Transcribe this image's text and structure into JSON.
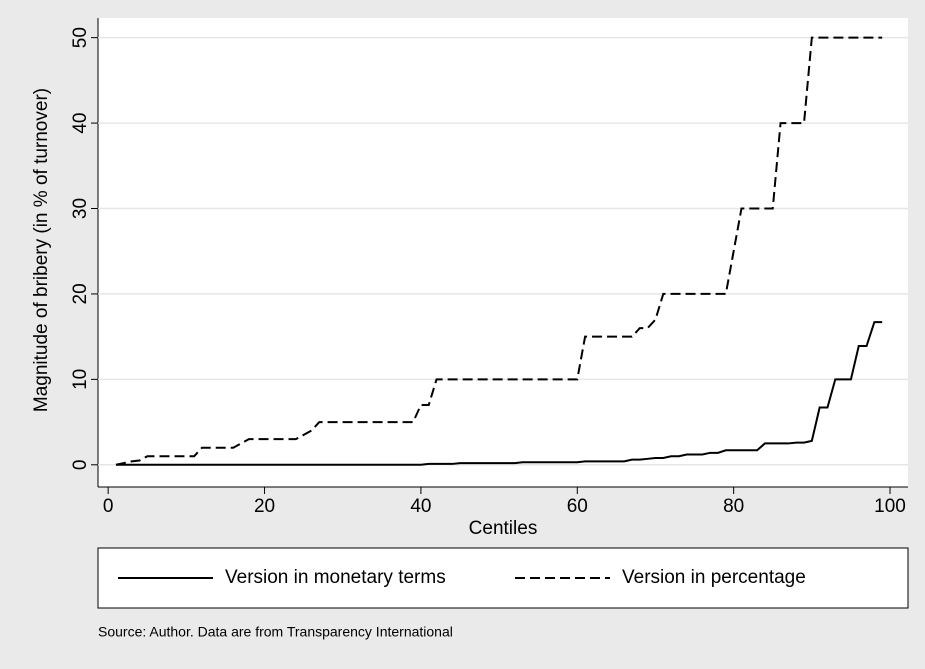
{
  "chart_data": {
    "type": "line",
    "x_label": "Centiles",
    "y_label": "Magnitude of bribery (in % of turnover)",
    "source": "Source: Author. Data are from Transparency International",
    "x": [
      1,
      2,
      3,
      4,
      5,
      6,
      7,
      8,
      9,
      10,
      11,
      12,
      13,
      14,
      15,
      16,
      17,
      18,
      19,
      20,
      21,
      22,
      23,
      24,
      25,
      26,
      27,
      28,
      29,
      30,
      31,
      32,
      33,
      34,
      35,
      36,
      37,
      38,
      39,
      40,
      41,
      42,
      43,
      44,
      45,
      46,
      47,
      48,
      49,
      50,
      51,
      52,
      53,
      54,
      55,
      56,
      57,
      58,
      59,
      60,
      61,
      62,
      63,
      64,
      65,
      66,
      67,
      68,
      69,
      70,
      71,
      72,
      73,
      74,
      75,
      76,
      77,
      78,
      79,
      80,
      81,
      82,
      83,
      84,
      85,
      86,
      87,
      88,
      89,
      90,
      91,
      92,
      93,
      94,
      95,
      96,
      97,
      98,
      99
    ],
    "series": [
      {
        "name": "Version in monetary terms",
        "color": "#000000",
        "style": "solid",
        "values": [
          0,
          0,
          0,
          0,
          0,
          0,
          0,
          0,
          0,
          0,
          0,
          0,
          0,
          0,
          0,
          0,
          0,
          0,
          0,
          0,
          0,
          0,
          0,
          0,
          0,
          0,
          0,
          0,
          0,
          0,
          0,
          0,
          0,
          0,
          0,
          0,
          0,
          0,
          0,
          0,
          0.1,
          0.1,
          0.1,
          0.1,
          0.2,
          0.2,
          0.2,
          0.2,
          0.2,
          0.2,
          0.2,
          0.2,
          0.3,
          0.3,
          0.3,
          0.3,
          0.3,
          0.3,
          0.3,
          0.3,
          0.4,
          0.4,
          0.4,
          0.4,
          0.4,
          0.4,
          0.6,
          0.6,
          0.7,
          0.8,
          0.8,
          1,
          1,
          1.2,
          1.2,
          1.2,
          1.4,
          1.4,
          1.7,
          1.7,
          1.7,
          1.7,
          1.7,
          2.5,
          2.5,
          2.5,
          2.5,
          2.6,
          2.6,
          2.8,
          6.7,
          6.7,
          10,
          10,
          10,
          13.9,
          13.9,
          16.7,
          16.7
        ]
      },
      {
        "name": "Version in percentage",
        "color": "#000000",
        "style": "dashed",
        "values": [
          0,
          0.2,
          0.4,
          0.5,
          1,
          1,
          1,
          1,
          1,
          1,
          1,
          2,
          2,
          2,
          2,
          2,
          2.5,
          3,
          3,
          3,
          3,
          3,
          3,
          3,
          3.5,
          4,
          5,
          5,
          5,
          5,
          5,
          5,
          5,
          5,
          5,
          5,
          5,
          5,
          5,
          7,
          7,
          10,
          10,
          10,
          10,
          10,
          10,
          10,
          10,
          10,
          10,
          10,
          10,
          10,
          10,
          10,
          10,
          10,
          10,
          10,
          15,
          15,
          15,
          15,
          15,
          15,
          15,
          16,
          16,
          17,
          20,
          20,
          20,
          20,
          20,
          20,
          20,
          20,
          20,
          25,
          30,
          30,
          30,
          30,
          30,
          40,
          40,
          40,
          40,
          50,
          50,
          50,
          50,
          50,
          50,
          50,
          50,
          50,
          50
        ]
      }
    ],
    "xlim": [
      -1.3,
      102.3
    ],
    "xticks": [
      0,
      20,
      40,
      60,
      80,
      100
    ],
    "ylim": [
      -2.6,
      52.3
    ],
    "yticks": [
      0,
      10,
      20,
      30,
      40,
      50
    ],
    "grid": true
  }
}
